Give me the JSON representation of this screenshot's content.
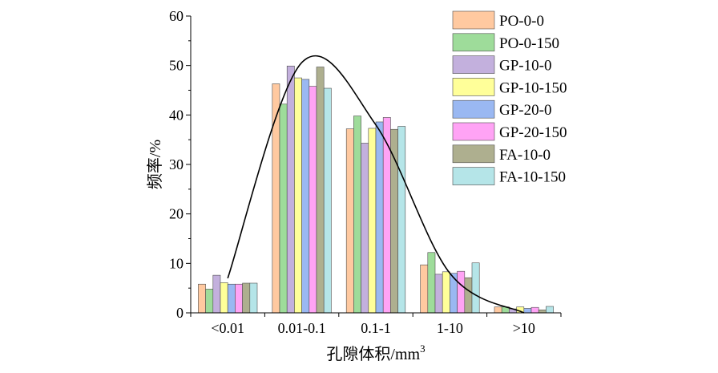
{
  "chart_data": {
    "type": "bar",
    "xlabel": "孔隙体积/mm",
    "xlabel_sup": "3",
    "ylabel": "频率/%",
    "ylim": [
      0,
      60
    ],
    "yticks": [
      "0",
      "10",
      "20",
      "30",
      "40",
      "50",
      "60"
    ],
    "categories": [
      "<0.01",
      "0.01-0.1",
      "0.1-1",
      "1-10",
      ">10"
    ],
    "legend_position": "top-right",
    "grid": false,
    "series": [
      {
        "name": "PO-0-0",
        "color": "#FFC9A0",
        "values": [
          5.8,
          46.3,
          37.2,
          9.7,
          1.2
        ]
      },
      {
        "name": "PO-0-150",
        "color": "#9EDC9A",
        "values": [
          4.8,
          42.2,
          39.8,
          12.2,
          1.2
        ]
      },
      {
        "name": "GP-10-0",
        "color": "#C3B0DD",
        "values": [
          7.6,
          49.9,
          34.3,
          7.8,
          0.8
        ]
      },
      {
        "name": "GP-10-150",
        "color": "#FFFF99",
        "values": [
          6.1,
          47.5,
          37.3,
          8.3,
          1.2
        ]
      },
      {
        "name": "GP-20-0",
        "color": "#9AB8F2",
        "values": [
          5.8,
          47.2,
          38.6,
          8.0,
          0.9
        ]
      },
      {
        "name": "GP-20-150",
        "color": "#FFA3F5",
        "values": [
          5.8,
          45.8,
          39.5,
          8.4,
          1.1
        ]
      },
      {
        "name": "FA-10-0",
        "color": "#AEAF8F",
        "values": [
          6.0,
          49.7,
          37.1,
          7.1,
          0.6
        ]
      },
      {
        "name": "FA-10-150",
        "color": "#B5E5E8",
        "values": [
          6.0,
          45.4,
          37.7,
          10.1,
          1.3
        ]
      }
    ],
    "fit_curve": {
      "type": "smooth",
      "points": [
        {
          "x": "<0.01",
          "y": 7
        },
        {
          "x": "0.01-0.1",
          "y": 50.6
        },
        {
          "x": "0.1-1",
          "y": 38
        },
        {
          "x": "1-10",
          "y": 8
        },
        {
          "x": ">10",
          "y": 0
        }
      ]
    }
  }
}
